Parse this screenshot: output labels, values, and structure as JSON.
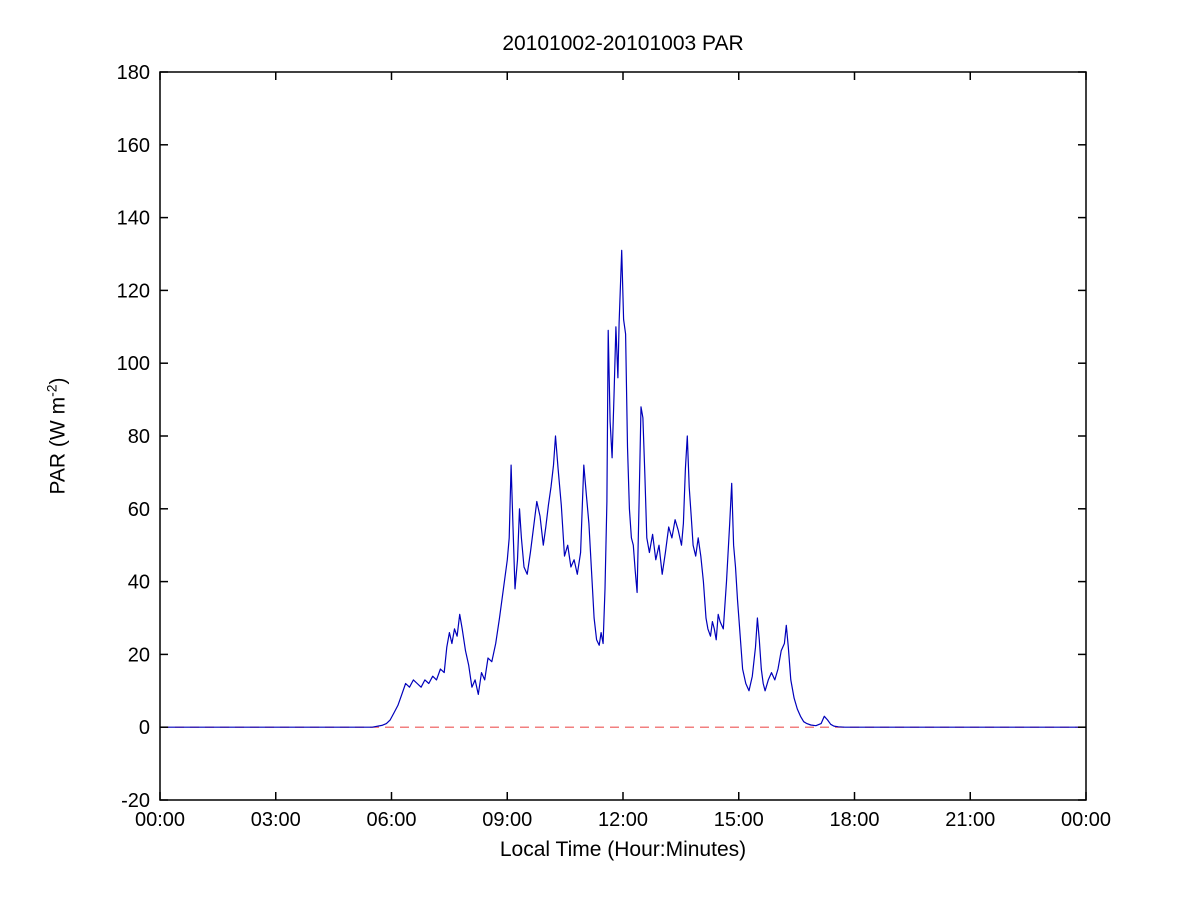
{
  "chart_data": {
    "type": "line",
    "title": "20101002-20101003 PAR",
    "xlabel": "Local Time (Hour:Minutes)",
    "ylabel": {
      "main": "PAR (W m",
      "sup": "-2",
      "end": ")"
    },
    "xlim": [
      0,
      1440
    ],
    "ylim": [
      -20,
      180
    ],
    "x_ticks_minutes": [
      0,
      180,
      360,
      540,
      720,
      900,
      1080,
      1260,
      1440
    ],
    "x_tick_labels": [
      "00:00",
      "03:00",
      "06:00",
      "09:00",
      "12:00",
      "15:00",
      "18:00",
      "21:00",
      "00:00"
    ],
    "y_ticks": [
      -20,
      0,
      20,
      40,
      60,
      80,
      100,
      120,
      140,
      160,
      180
    ],
    "grid": false,
    "legend": null,
    "colors": {
      "par_line": "#0000bb",
      "zero_line": "#ee5555",
      "axes": "#000000"
    },
    "series": [
      {
        "name": "zero-reference-line",
        "color": "#ee5555",
        "style": "dashed",
        "points": [
          [
            0,
            0
          ],
          [
            1440,
            0
          ]
        ]
      },
      {
        "name": "PAR",
        "color": "#0000bb",
        "style": "solid",
        "points": [
          [
            0,
            0
          ],
          [
            60,
            0
          ],
          [
            120,
            0
          ],
          [
            180,
            0
          ],
          [
            240,
            0
          ],
          [
            300,
            0
          ],
          [
            330,
            0
          ],
          [
            345,
            0.5
          ],
          [
            352,
            1
          ],
          [
            358,
            2
          ],
          [
            364,
            4
          ],
          [
            370,
            6
          ],
          [
            376,
            9
          ],
          [
            382,
            12
          ],
          [
            388,
            11
          ],
          [
            394,
            13
          ],
          [
            400,
            12
          ],
          [
            406,
            11
          ],
          [
            412,
            13
          ],
          [
            418,
            12
          ],
          [
            424,
            14
          ],
          [
            430,
            13
          ],
          [
            436,
            16
          ],
          [
            442,
            15
          ],
          [
            446,
            22
          ],
          [
            450,
            26
          ],
          [
            454,
            23
          ],
          [
            458,
            27
          ],
          [
            462,
            25
          ],
          [
            466,
            31
          ],
          [
            470,
            27
          ],
          [
            475,
            21
          ],
          [
            480,
            17
          ],
          [
            485,
            11
          ],
          [
            490,
            13
          ],
          [
            495,
            9
          ],
          [
            500,
            15
          ],
          [
            505,
            13
          ],
          [
            510,
            19
          ],
          [
            516,
            18
          ],
          [
            522,
            23
          ],
          [
            528,
            30
          ],
          [
            534,
            38
          ],
          [
            540,
            46
          ],
          [
            543,
            52
          ],
          [
            546,
            72
          ],
          [
            549,
            55
          ],
          [
            552,
            38
          ],
          [
            556,
            46
          ],
          [
            559,
            60
          ],
          [
            562,
            52
          ],
          [
            566,
            44
          ],
          [
            571,
            42
          ],
          [
            576,
            48
          ],
          [
            581,
            55
          ],
          [
            586,
            62
          ],
          [
            591,
            58
          ],
          [
            596,
            50
          ],
          [
            600,
            55
          ],
          [
            604,
            61
          ],
          [
            608,
            66
          ],
          [
            612,
            72
          ],
          [
            615,
            80
          ],
          [
            619,
            71
          ],
          [
            624,
            61
          ],
          [
            629,
            47
          ],
          [
            634,
            50
          ],
          [
            639,
            44
          ],
          [
            644,
            46
          ],
          [
            649,
            42
          ],
          [
            654,
            48
          ],
          [
            659,
            72
          ],
          [
            663,
            64
          ],
          [
            667,
            56
          ],
          [
            671,
            43
          ],
          [
            675,
            30
          ],
          [
            679,
            24
          ],
          [
            683,
            22.5
          ],
          [
            686,
            26
          ],
          [
            689,
            23
          ],
          [
            692,
            38
          ],
          [
            695,
            62
          ],
          [
            697,
            109
          ],
          [
            700,
            84
          ],
          [
            703,
            74
          ],
          [
            706,
            91
          ],
          [
            709,
            110
          ],
          [
            712,
            96
          ],
          [
            714,
            111
          ],
          [
            716,
            121
          ],
          [
            718,
            131
          ],
          [
            721,
            112
          ],
          [
            724,
            108
          ],
          [
            727,
            77
          ],
          [
            730,
            60
          ],
          [
            733,
            52
          ],
          [
            736,
            50
          ],
          [
            739,
            43
          ],
          [
            742,
            37
          ],
          [
            745,
            62
          ],
          [
            748,
            88
          ],
          [
            751,
            85
          ],
          [
            754,
            69
          ],
          [
            757,
            52
          ],
          [
            761,
            48
          ],
          [
            766,
            53
          ],
          [
            771,
            46
          ],
          [
            776,
            50
          ],
          [
            781,
            42
          ],
          [
            786,
            48
          ],
          [
            791,
            55
          ],
          [
            796,
            52
          ],
          [
            801,
            57
          ],
          [
            806,
            54
          ],
          [
            811,
            50
          ],
          [
            814,
            56
          ],
          [
            817,
            71
          ],
          [
            820,
            80
          ],
          [
            823,
            66
          ],
          [
            826,
            58
          ],
          [
            829,
            50
          ],
          [
            833,
            47
          ],
          [
            837,
            52
          ],
          [
            841,
            47
          ],
          [
            845,
            40
          ],
          [
            849,
            30
          ],
          [
            852,
            27
          ],
          [
            856,
            25
          ],
          [
            859,
            29
          ],
          [
            862,
            27
          ],
          [
            865,
            24
          ],
          [
            868,
            31
          ],
          [
            871,
            29
          ],
          [
            876,
            27
          ],
          [
            881,
            40
          ],
          [
            886,
            56
          ],
          [
            889,
            67
          ],
          [
            892,
            50
          ],
          [
            895,
            44
          ],
          [
            898,
            35
          ],
          [
            901,
            28
          ],
          [
            906,
            16
          ],
          [
            911,
            12
          ],
          [
            916,
            10
          ],
          [
            921,
            14
          ],
          [
            926,
            22
          ],
          [
            929,
            30
          ],
          [
            932,
            24
          ],
          [
            935,
            16
          ],
          [
            938,
            12
          ],
          [
            941,
            10
          ],
          [
            946,
            13
          ],
          [
            951,
            15
          ],
          [
            956,
            13
          ],
          [
            961,
            16
          ],
          [
            966,
            21
          ],
          [
            971,
            23
          ],
          [
            974,
            28
          ],
          [
            977,
            22
          ],
          [
            981,
            13
          ],
          [
            986,
            8
          ],
          [
            991,
            5
          ],
          [
            996,
            3
          ],
          [
            1001,
            1.5
          ],
          [
            1006,
            1
          ],
          [
            1012,
            0.6
          ],
          [
            1020,
            0.4
          ],
          [
            1028,
            1
          ],
          [
            1033,
            3
          ],
          [
            1038,
            2
          ],
          [
            1043,
            0.8
          ],
          [
            1048,
            0.3
          ],
          [
            1055,
            0.1
          ],
          [
            1065,
            0
          ],
          [
            1080,
            0
          ],
          [
            1140,
            0
          ],
          [
            1200,
            0
          ],
          [
            1260,
            0
          ],
          [
            1320,
            0
          ],
          [
            1380,
            0
          ],
          [
            1440,
            0
          ]
        ]
      }
    ]
  }
}
